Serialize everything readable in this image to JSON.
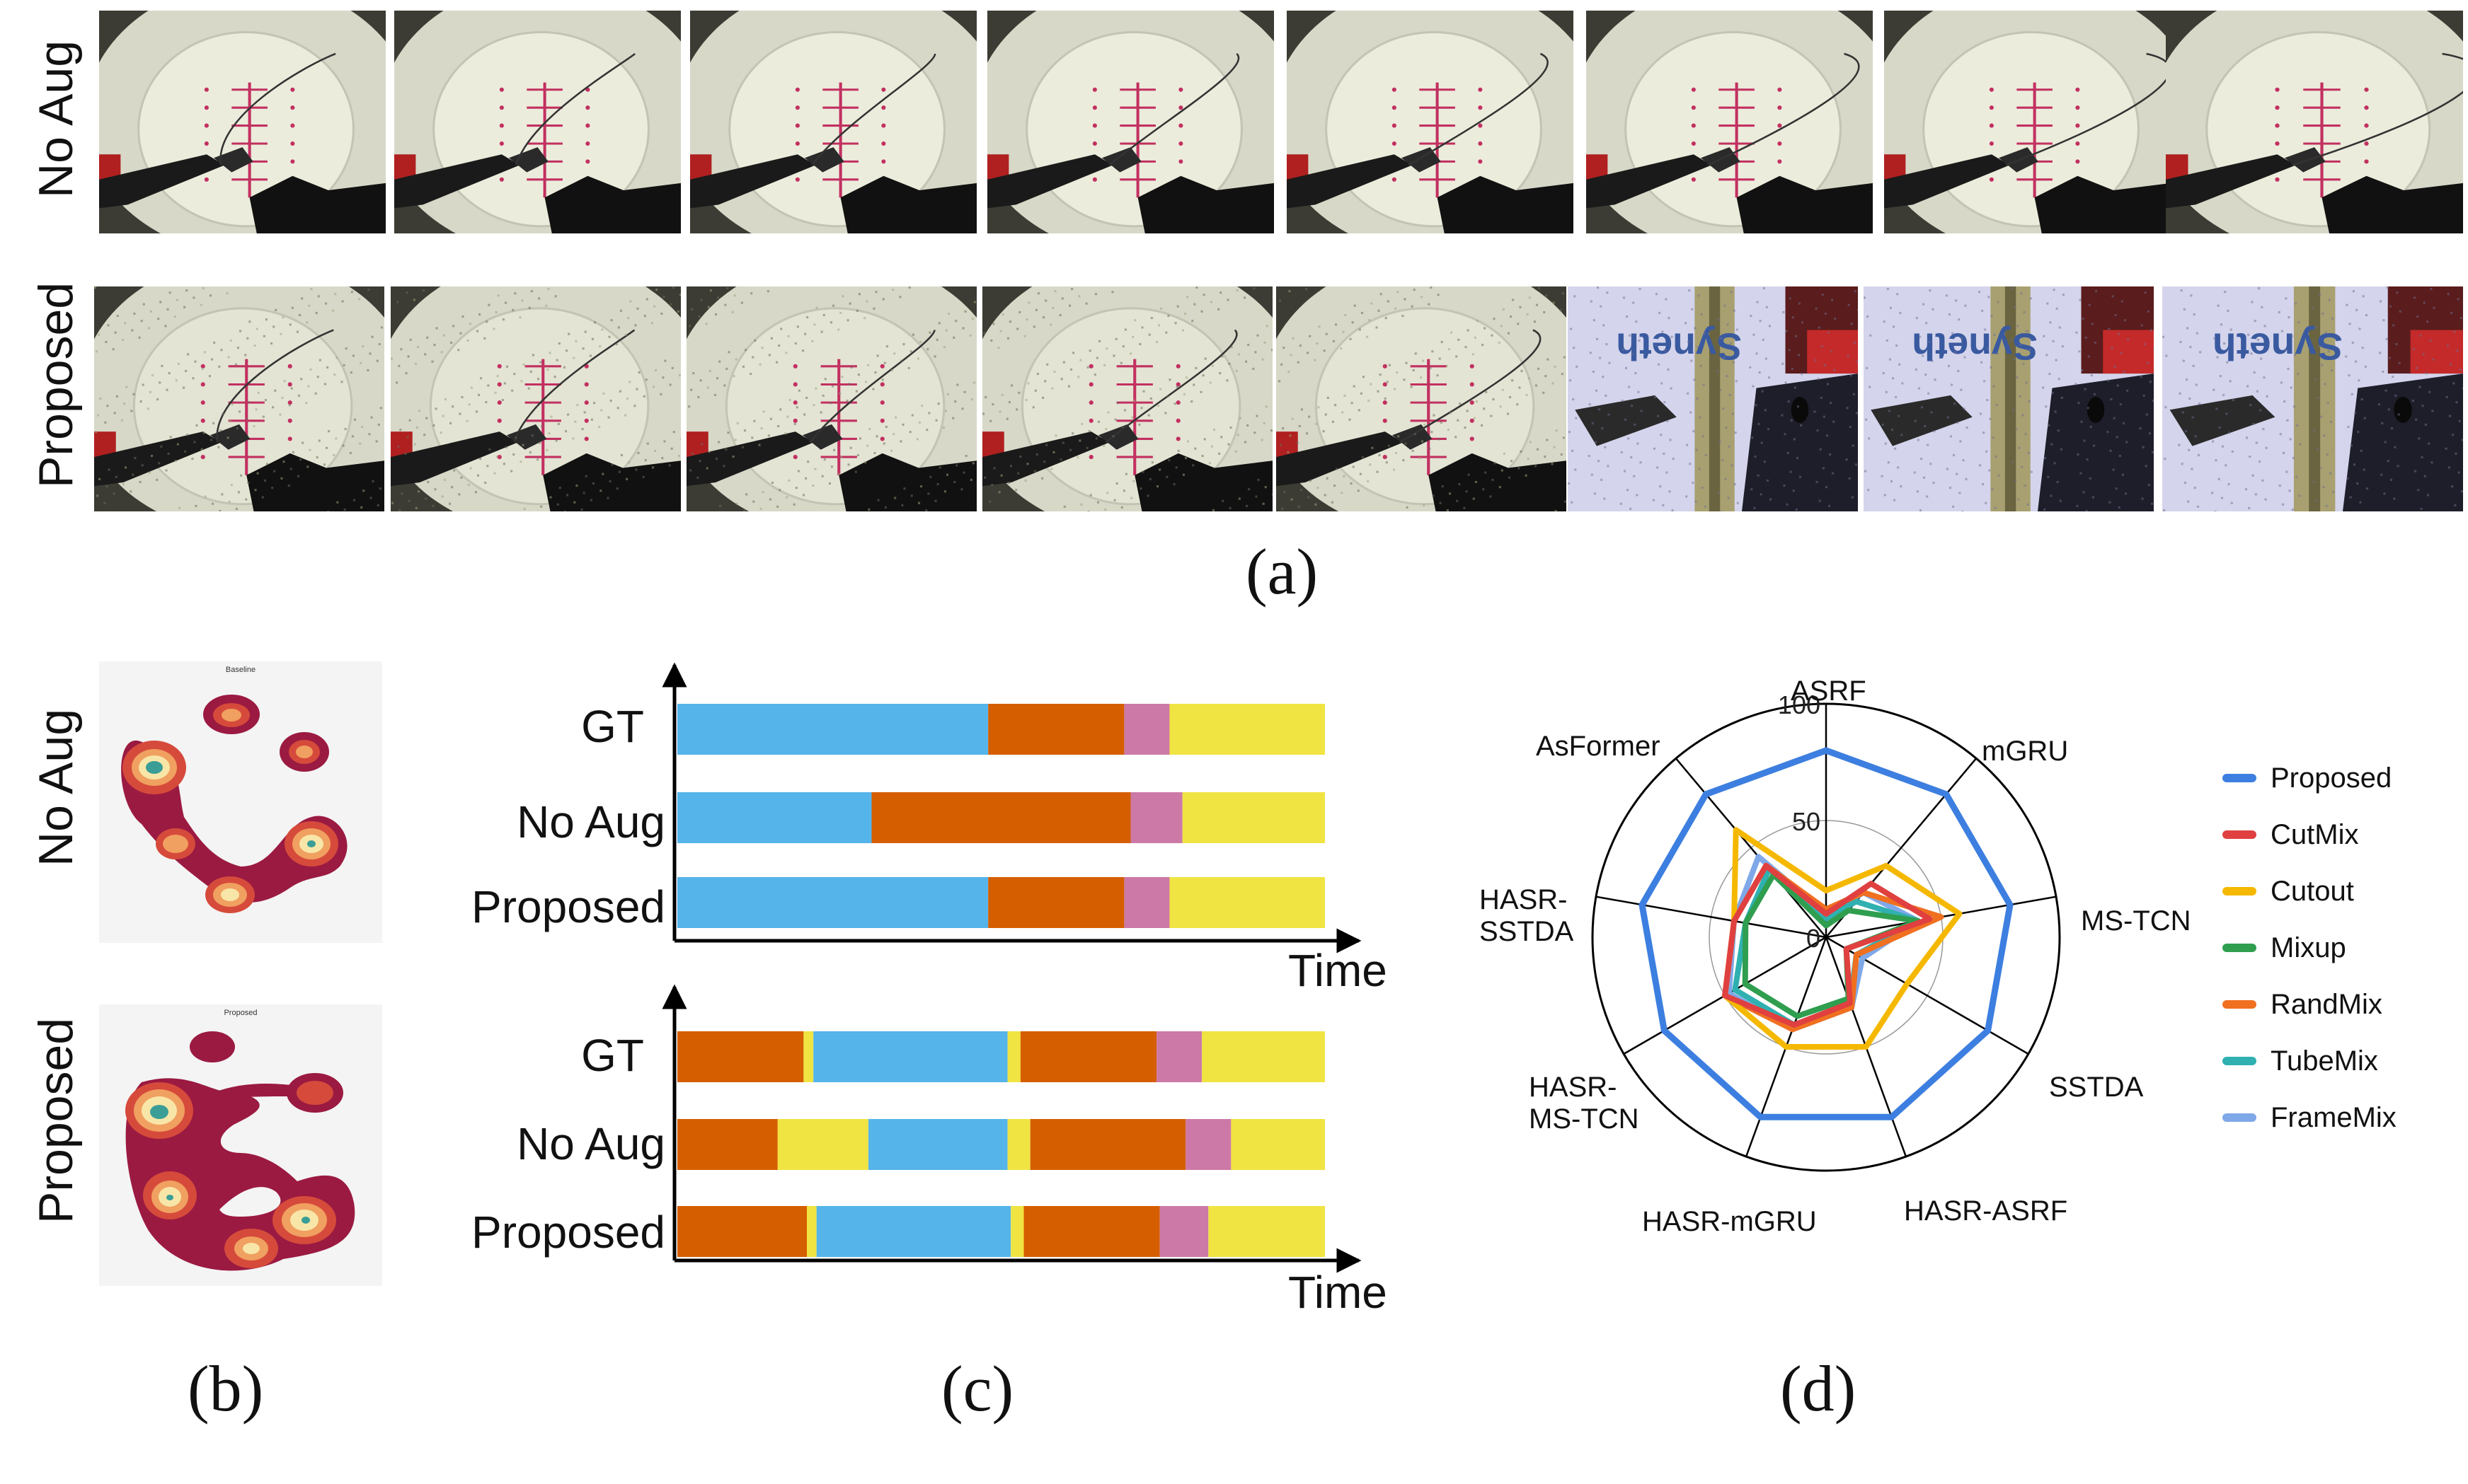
{
  "panel_a": {
    "row_labels": [
      "No Aug",
      "Proposed"
    ],
    "caption": "(a)"
  },
  "panel_b": {
    "row_labels": [
      "No Aug",
      "Proposed"
    ],
    "map_titles": [
      "Baseline",
      "Proposed"
    ],
    "caption": "(b)"
  },
  "panel_c": {
    "caption": "(c)",
    "axis_label": "Time",
    "phase_colors": {
      "blue": "#55b4e9",
      "orange": "#d55e00",
      "pink": "#cc79a7",
      "yellow": "#f0e442"
    },
    "charts": [
      {
        "rows": [
          {
            "label": "GT",
            "segments": [
              [
                "blue",
                0.48
              ],
              [
                "orange",
                0.21
              ],
              [
                "pink",
                0.07
              ],
              [
                "yellow",
                0.24
              ]
            ]
          },
          {
            "label": "No Aug",
            "segments": [
              [
                "blue",
                0.3
              ],
              [
                "orange",
                0.4
              ],
              [
                "pink",
                0.08
              ],
              [
                "yellow",
                0.22
              ]
            ]
          },
          {
            "label": "Proposed",
            "segments": [
              [
                "blue",
                0.48
              ],
              [
                "orange",
                0.21
              ],
              [
                "pink",
                0.07
              ],
              [
                "yellow",
                0.24
              ]
            ]
          }
        ]
      },
      {
        "rows": [
          {
            "label": "GT",
            "segments": [
              [
                "orange",
                0.195
              ],
              [
                "yellow",
                0.015
              ],
              [
                "blue",
                0.3
              ],
              [
                "yellow",
                0.02
              ],
              [
                "orange",
                0.21
              ],
              [
                "pink",
                0.07
              ],
              [
                "yellow",
                0.19
              ]
            ]
          },
          {
            "label": "No Aug",
            "segments": [
              [
                "orange",
                0.155
              ],
              [
                "yellow",
                0.14
              ],
              [
                "blue",
                0.215
              ],
              [
                "yellow",
                0.035
              ],
              [
                "orange",
                0.24
              ],
              [
                "pink",
                0.07
              ],
              [
                "yellow",
                0.145
              ]
            ]
          },
          {
            "label": "Proposed",
            "segments": [
              [
                "orange",
                0.2
              ],
              [
                "yellow",
                0.015
              ],
              [
                "blue",
                0.3
              ],
              [
                "yellow",
                0.02
              ],
              [
                "orange",
                0.21
              ],
              [
                "pink",
                0.075
              ],
              [
                "yellow",
                0.18
              ]
            ]
          }
        ]
      }
    ]
  },
  "chart_data": {
    "type": "radar",
    "caption": "(d)",
    "axes": [
      "ASRF",
      "mGRU",
      "MS-TCN",
      "SSTDA",
      "HASR-ASRF",
      "HASR-mGRU",
      "HASR-\nMS-TCN",
      "HASR-\nSSTDA",
      "AsFormer"
    ],
    "radial_ticks": [
      0,
      50,
      100
    ],
    "range": [
      0,
      100
    ],
    "series": [
      {
        "name": "Proposed",
        "color": "#3d7fe0",
        "values": [
          80,
          80,
          80,
          80,
          82,
          82,
          80,
          80,
          80
        ]
      },
      {
        "name": "CutMix",
        "color": "#e04040",
        "values": [
          10,
          30,
          45,
          10,
          30,
          40,
          50,
          40,
          40
        ]
      },
      {
        "name": "Cutout",
        "color": "#f5b800",
        "values": [
          20,
          40,
          58,
          40,
          50,
          50,
          50,
          40,
          60
        ]
      },
      {
        "name": "Mixup",
        "color": "#2f9e4f",
        "values": [
          5,
          15,
          40,
          10,
          28,
          36,
          40,
          35,
          35
        ]
      },
      {
        "name": "RandMix",
        "color": "#f07020",
        "values": [
          12,
          25,
          50,
          15,
          32,
          42,
          50,
          40,
          40
        ]
      },
      {
        "name": "TubeMix",
        "color": "#30b0b0",
        "values": [
          8,
          20,
          40,
          15,
          30,
          40,
          45,
          35,
          38
        ]
      },
      {
        "name": "FrameMix",
        "color": "#7fa8e8",
        "values": [
          10,
          25,
          40,
          18,
          32,
          42,
          48,
          40,
          45
        ]
      }
    ]
  }
}
